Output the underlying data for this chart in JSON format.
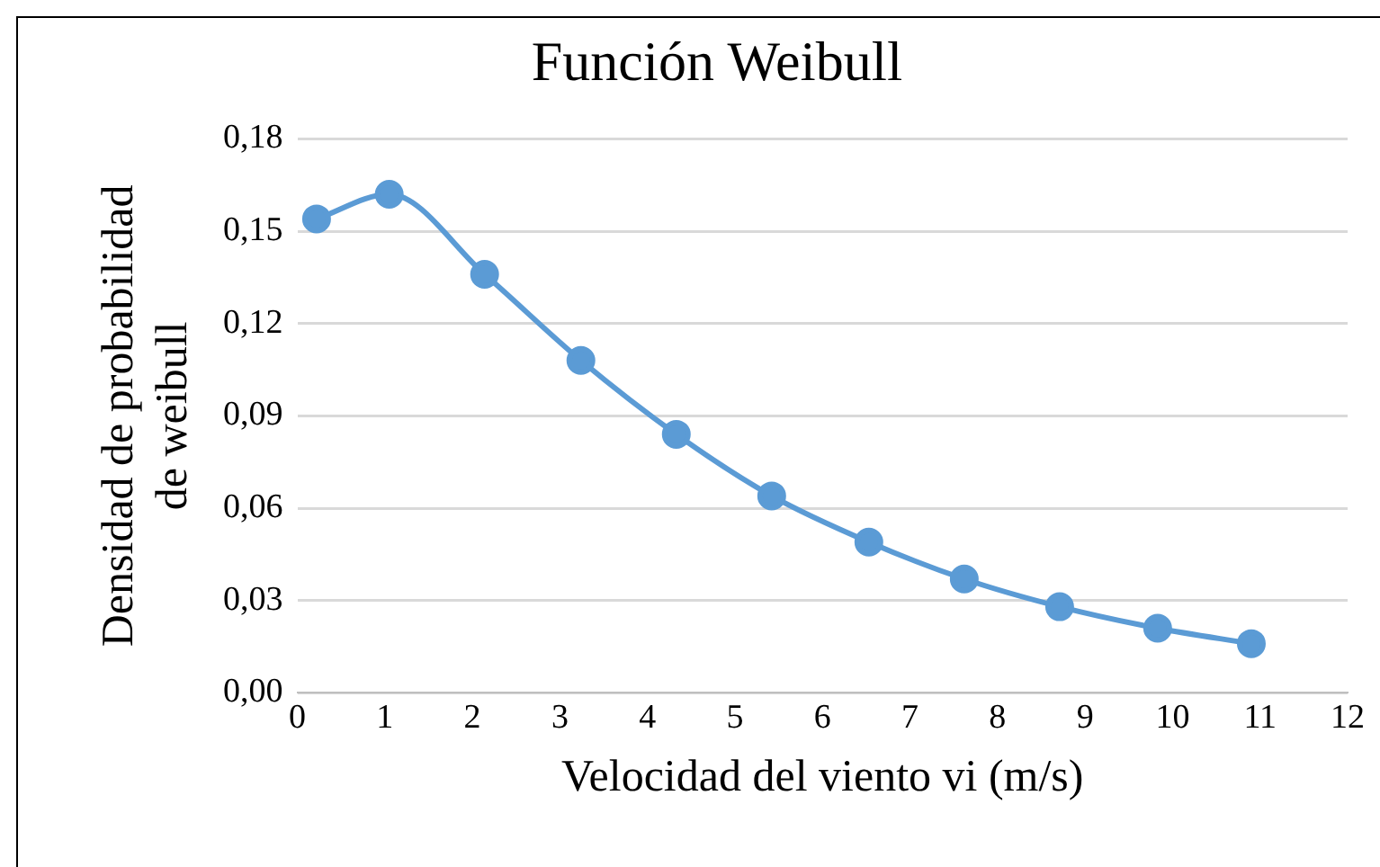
{
  "chart_data": {
    "type": "line",
    "title": "Función Weibull",
    "xlabel": "Velocidad del viento vi (m/s)",
    "ylabel": "Densidad de probabilidad de weibull",
    "x": [
      0.22,
      1.05,
      2.14,
      3.24,
      4.33,
      5.42,
      6.53,
      7.62,
      8.71,
      9.83,
      10.9
    ],
    "series": [
      {
        "color": "#5b9bd5",
        "values": [
          0.154,
          0.162,
          0.136,
          0.108,
          0.084,
          0.064,
          0.049,
          0.037,
          0.028,
          0.021,
          0.016
        ]
      }
    ],
    "xlim": [
      0,
      12
    ],
    "xticks": [
      0,
      1,
      2,
      3,
      4,
      5,
      6,
      7,
      8,
      9,
      10,
      11,
      12
    ],
    "ylim": [
      0,
      0.18
    ],
    "yticks": [
      {
        "value": 0,
        "label": "0,00"
      },
      {
        "value": 0.03,
        "label": "0,03"
      },
      {
        "value": 0.06,
        "label": "0,06"
      },
      {
        "value": 0.09,
        "label": "0,09"
      },
      {
        "value": 0.12,
        "label": "0,12"
      },
      {
        "value": 0.15,
        "label": "0,15"
      },
      {
        "value": 0.18,
        "label": "0,18"
      }
    ],
    "grid": "y",
    "legend": false,
    "marker": "circle",
    "line_style": "solid"
  }
}
